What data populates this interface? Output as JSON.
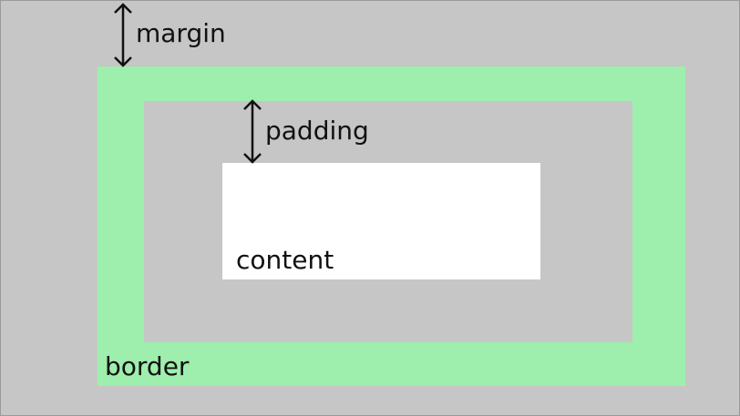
{
  "diagram": {
    "colors": {
      "margin": "#c6c6c6",
      "border": "#9eefad",
      "padding": "#c6c6c6",
      "content": "#ffffff",
      "text": "#111111",
      "arrow": "#111111"
    },
    "labels": {
      "margin": "margin",
      "border": "border",
      "padding": "padding",
      "content": "content"
    },
    "icons": {
      "margin_arrow": "double-headed-vertical-arrow",
      "padding_arrow": "double-headed-vertical-arrow"
    }
  }
}
